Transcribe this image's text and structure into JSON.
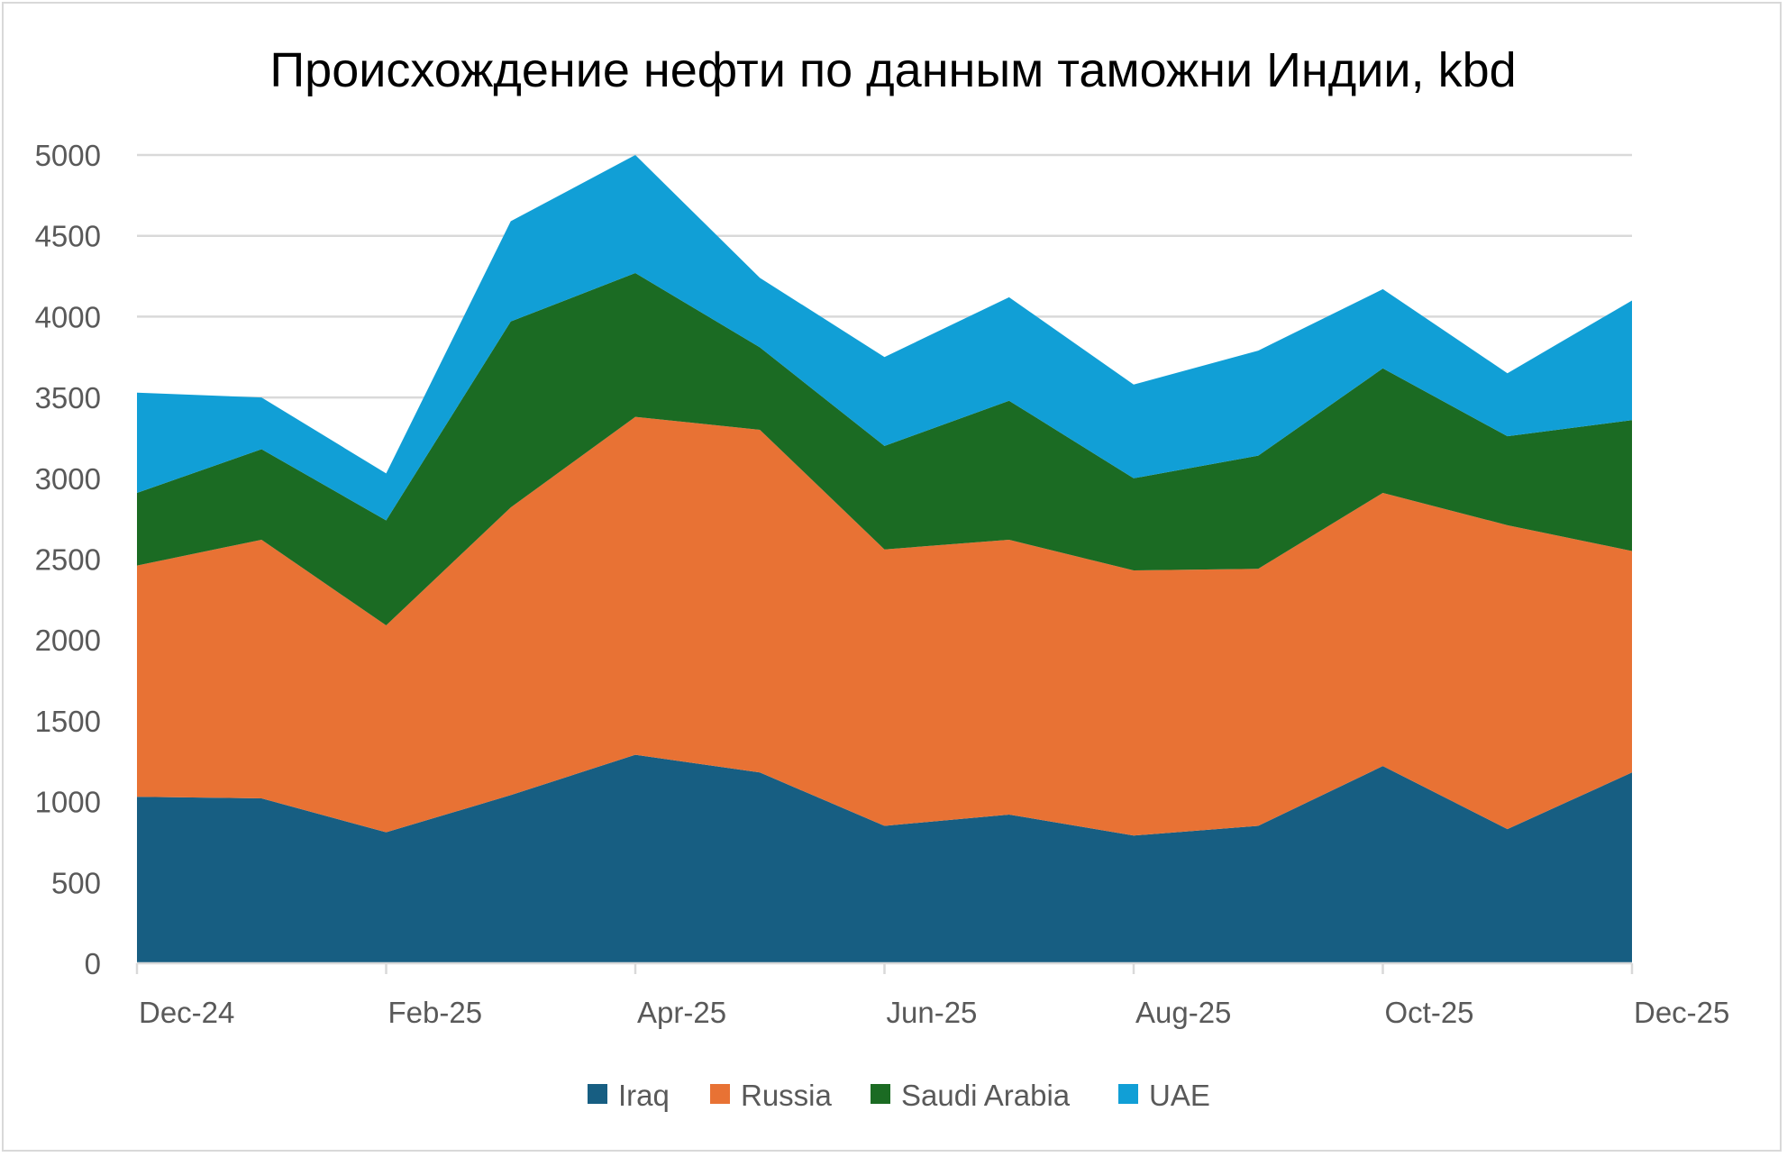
{
  "chart_data": {
    "type": "area",
    "stacked": true,
    "title": "Происхождение нефти по данным таможни Индии, kbd",
    "xlabel": "",
    "ylabel": "",
    "categories": [
      "Dec-24",
      "Jan-25",
      "Feb-25",
      "Mar-25",
      "Apr-25",
      "May-25",
      "Jun-25",
      "Jul-25",
      "Aug-25",
      "Sep-25",
      "Oct-25",
      "Nov-25",
      "Dec-25"
    ],
    "x_tick_labels": [
      "Dec-24",
      "Feb-25",
      "Apr-25",
      "Jun-25",
      "Aug-25",
      "Oct-25",
      "Dec-25"
    ],
    "y_tick_labels": [
      "0",
      "500",
      "1000",
      "1500",
      "2000",
      "2500",
      "3000",
      "3500",
      "4000",
      "4500",
      "5000"
    ],
    "ylim": [
      0,
      5000
    ],
    "grid": "horizontal",
    "legend": "bottom",
    "series": [
      {
        "name": "Iraq",
        "color": "#175e82",
        "values": [
          1030,
          1020,
          810,
          1040,
          1290,
          1180,
          850,
          920,
          790,
          850,
          1220,
          830,
          1180
        ]
      },
      {
        "name": "Russia",
        "color": "#e87234",
        "values": [
          1430,
          1600,
          1280,
          1780,
          2090,
          2120,
          1710,
          1700,
          1640,
          1590,
          1690,
          1880,
          1370
        ]
      },
      {
        "name": "Saudi Arabia",
        "color": "#1b6b23",
        "values": [
          450,
          560,
          650,
          1150,
          890,
          510,
          640,
          860,
          570,
          700,
          770,
          550,
          810
        ]
      },
      {
        "name": "UAE",
        "color": "#119fd6",
        "values": [
          620,
          320,
          290,
          620,
          730,
          430,
          550,
          640,
          580,
          650,
          490,
          390,
          740
        ]
      }
    ]
  }
}
